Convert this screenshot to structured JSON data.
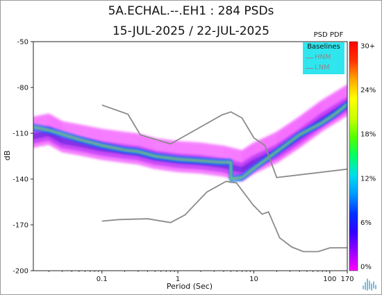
{
  "titles": {
    "line1": "5A.ECHAL.--.EH1 : 284 PSDs",
    "line2": "15-JUL-2025 / 22-JUL-2025"
  },
  "colorbar": {
    "label": "PSD PDF",
    "ticks": [
      "30+",
      "24%",
      "18%",
      "12%",
      "6%",
      "0%"
    ],
    "colors": [
      "#ff00ff",
      "#9900ff",
      "#3300ff",
      "#0033ff",
      "#0099ff",
      "#00ddee",
      "#00ff66",
      "#55ff00",
      "#ccff00",
      "#ffff00",
      "#ffaa00",
      "#ff3300",
      "#ff0000"
    ]
  },
  "legend": {
    "title": "Baselines",
    "items": [
      "HNM",
      "LNM"
    ],
    "background": "#2fe6ef",
    "line_color": "#8a8a8a"
  },
  "chart_data": {
    "type": "heatmap",
    "title": "5A.ECHAL.--.EH1 : 284 PSDs",
    "subtitle": "15-JUL-2025 / 22-JUL-2025",
    "xlabel": "Period (Sec)",
    "ylabel": "dB",
    "xscale": "log",
    "xlim": [
      0.0125,
      170
    ],
    "ylim": [
      -200,
      -50
    ],
    "xticks": [
      {
        "value": 0.1,
        "label": "0.1"
      },
      {
        "value": 1,
        "label": "1"
      },
      {
        "value": 10,
        "label": "10"
      },
      {
        "value": 100,
        "label": "100"
      },
      {
        "value": 170,
        "label": "170"
      }
    ],
    "yticks": [
      {
        "value": -50,
        "label": "-50"
      },
      {
        "value": -80,
        "label": "-80"
      },
      {
        "value": -110,
        "label": "-110"
      },
      {
        "value": -140,
        "label": "-140"
      },
      {
        "value": -170,
        "label": "-170"
      },
      {
        "value": -200,
        "label": "-200"
      }
    ],
    "grid": false,
    "colorbar_range": [
      "0%",
      "30+"
    ],
    "baselines": [
      {
        "name": "HNM",
        "points": [
          [
            0.1,
            -91.5
          ],
          [
            0.22,
            -97.5
          ],
          [
            0.32,
            -111
          ],
          [
            0.8,
            -117
          ],
          [
            3.8,
            -98
          ],
          [
            5.0,
            -96
          ],
          [
            7.0,
            -100
          ],
          [
            10,
            -113
          ],
          [
            14,
            -118
          ],
          [
            20,
            -139
          ],
          [
            170,
            -133.5
          ]
        ]
      },
      {
        "name": "LNM",
        "points": [
          [
            0.1,
            -167.5
          ],
          [
            0.17,
            -166.5
          ],
          [
            0.4,
            -166
          ],
          [
            0.8,
            -168.5
          ],
          [
            1.24,
            -163.5
          ],
          [
            2.4,
            -148.5
          ],
          [
            4.3,
            -141.5
          ],
          [
            5.9,
            -142.5
          ],
          [
            9.8,
            -157
          ],
          [
            12.9,
            -163
          ],
          [
            15.6,
            -161.5
          ],
          [
            21.9,
            -178.5
          ],
          [
            31.6,
            -184.5
          ],
          [
            45,
            -187.5
          ],
          [
            70,
            -187.5
          ],
          [
            101,
            -185
          ],
          [
            170,
            -185
          ]
        ]
      }
    ],
    "density_bands": [
      {
        "level": "low",
        "points": [
          [
            0.0125,
            -112
          ],
          [
            0.02,
            -110
          ],
          [
            0.03,
            -115
          ],
          [
            0.05,
            -117
          ],
          [
            0.1,
            -120
          ],
          [
            0.2,
            -122
          ],
          [
            0.3,
            -123
          ],
          [
            0.5,
            -126
          ],
          [
            1,
            -128
          ],
          [
            2,
            -129
          ],
          [
            4,
            -131
          ],
          [
            7,
            -134
          ],
          [
            10,
            -129
          ],
          [
            20,
            -122
          ],
          [
            40,
            -112
          ],
          [
            80,
            -101
          ],
          [
            170,
            -91
          ]
        ],
        "spread": 13
      },
      {
        "level": "peak",
        "points": [
          [
            0.0125,
            -106
          ],
          [
            0.02,
            -108
          ],
          [
            0.05,
            -114
          ],
          [
            0.1,
            -118
          ],
          [
            0.2,
            -121
          ],
          [
            0.3,
            -122
          ],
          [
            0.5,
            -125
          ],
          [
            1,
            -127
          ],
          [
            2,
            -128
          ],
          [
            3.5,
            -129
          ],
          [
            5,
            -129
          ],
          [
            5,
            -140
          ],
          [
            7,
            -139
          ],
          [
            10,
            -133
          ],
          [
            20,
            -122
          ],
          [
            40,
            -111
          ],
          [
            80,
            -103
          ],
          [
            120,
            -97
          ],
          [
            170,
            -91
          ]
        ],
        "spread": 2
      }
    ]
  }
}
